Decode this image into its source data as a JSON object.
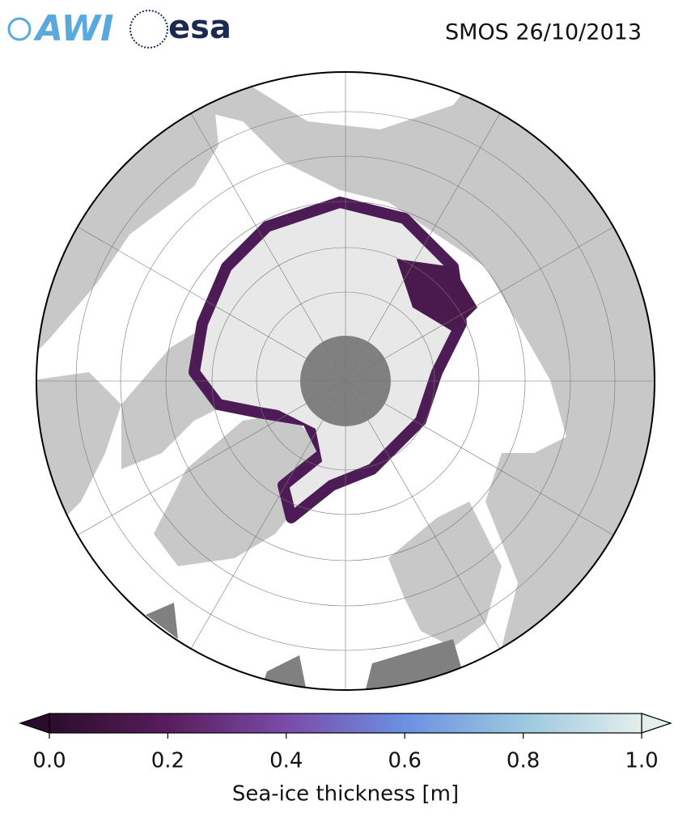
{
  "header": {
    "logos": [
      "AWI",
      "esa"
    ],
    "title": "SMOS 26/10/2013"
  },
  "colorbar": {
    "label": "Sea-ice thickness [m]",
    "lim": [
      0,
      1
    ],
    "ticks": [
      {
        "value": 0,
        "label": "0.0"
      },
      0.2,
      0.4,
      0.6,
      0.8,
      {
        "value": 1,
        "label": "1.0"
      }
    ],
    "colors": [
      "#2b0d2b",
      "#581d5c",
      "#7a4ba8",
      "#6c90e2",
      "#9cc8df",
      "#e4eeec"
    ]
  }
}
